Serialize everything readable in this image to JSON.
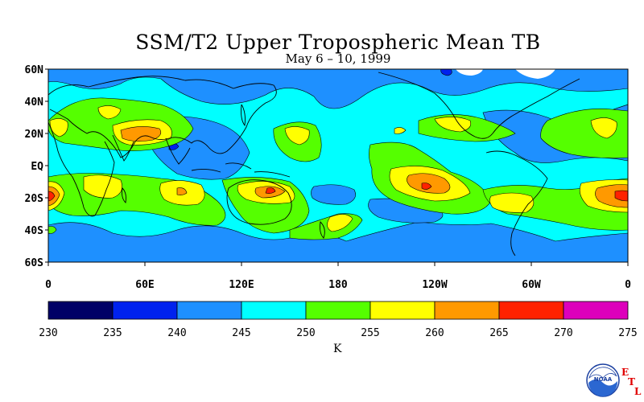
{
  "title": "SSM/T2 Upper Tropospheric Mean TB",
  "subtitle": "May 6 – 10, 1999",
  "lat_labels": [
    "60N",
    "40N",
    "20N",
    "EQ",
    "20S",
    "40S",
    "60S"
  ],
  "lon_labels": [
    "0",
    "60E",
    "120E",
    "180",
    "120W",
    "60W",
    "0"
  ],
  "colorbar": {
    "labels": [
      "230",
      "235",
      "240",
      "245",
      "250",
      "255",
      "260",
      "265",
      "270",
      "275"
    ],
    "colors": [
      "#000066",
      "#0022ee",
      "#1e90ff",
      "#00ffff",
      "#55ff00",
      "#ffff00",
      "#ff9900",
      "#ff2200",
      "#dd00bb"
    ],
    "unit": "K"
  },
  "logo": {
    "icon": "noaa-logo-icon",
    "letters": [
      "E",
      "T",
      "L"
    ],
    "logo_text": "NOAA"
  }
}
